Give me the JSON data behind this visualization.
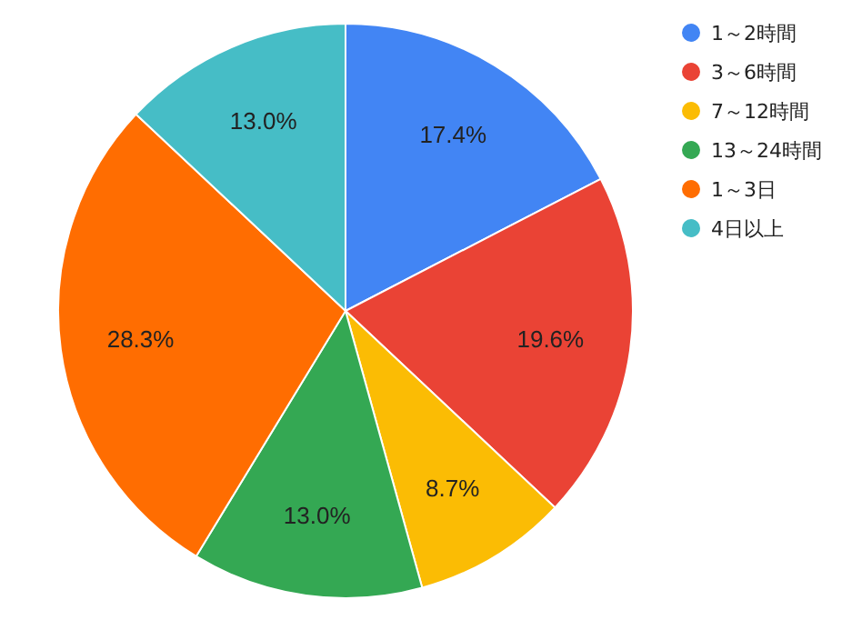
{
  "chart_data": {
    "type": "pie",
    "categories": [
      "1～2時間",
      "3～6時間",
      "7～12時間",
      "13～24時間",
      "1～3日",
      "4日以上"
    ],
    "values": [
      17.4,
      19.6,
      8.7,
      13.0,
      28.3,
      13.0
    ],
    "value_labels": [
      "17.4%",
      "19.6%",
      "8.7%",
      "13.0%",
      "28.3%",
      "13.0%"
    ],
    "colors": [
      "#4285f4",
      "#ea4335",
      "#fbbc04",
      "#34a853",
      "#ff6d01",
      "#46bdc6"
    ],
    "legend": "right"
  }
}
